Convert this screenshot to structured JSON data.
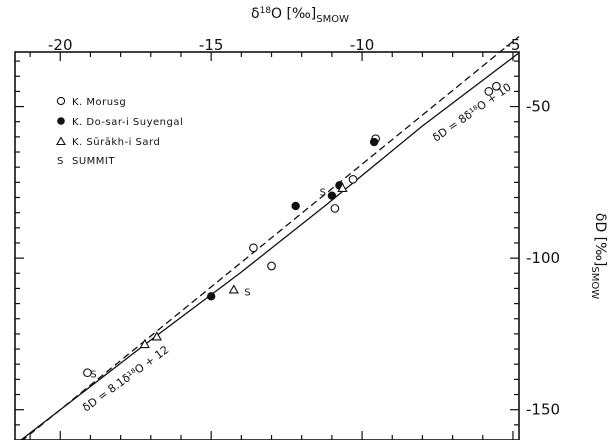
{
  "chart_data": {
    "type": "scatter",
    "xlabel": {
      "main": "δ",
      "sup": "18",
      "mid": "O [‰]",
      "sub": "SMOW"
    },
    "ylabel": {
      "main": "δD [‰]",
      "sub": "SMOW"
    },
    "xlim": [
      -21.5,
      -4.8
    ],
    "ylim": [
      -160,
      -32
    ],
    "x_ticks": [
      -20,
      -15,
      -10,
      -5
    ],
    "y_ticks": [
      -50,
      -100,
      -150
    ],
    "x_tick_labels": [
      "-20",
      "-15",
      "-10",
      "-5"
    ],
    "y_tick_labels": [
      "-50",
      "-100",
      "-150"
    ],
    "grid": false,
    "legend_placement": "top-left",
    "legend": [
      {
        "marker": "open-circle",
        "label": "K. Morusg"
      },
      {
        "marker": "filled-circle",
        "label": "K. Do-sar-i Suyengal"
      },
      {
        "marker": "open-triangle",
        "label": "K. Sūrākh-i Sard"
      },
      {
        "marker": "letter-S",
        "label": "SUMMIT"
      }
    ],
    "series": [
      {
        "name": "K. Morusg",
        "marker": "open-circle",
        "points": [
          [
            -19.1,
            -137.8
          ],
          [
            -13.6,
            -96.6
          ],
          [
            -13.0,
            -102.6
          ],
          [
            -10.9,
            -83.6
          ],
          [
            -10.3,
            -74.0
          ],
          [
            -9.55,
            -60.6
          ],
          [
            -5.8,
            -45.0
          ],
          [
            -5.55,
            -43.3
          ]
        ]
      },
      {
        "name": "K. Do-sar-i Suyengal",
        "marker": "filled-circle",
        "points": [
          [
            -15.0,
            -112.6
          ],
          [
            -12.2,
            -82.8
          ],
          [
            -11.0,
            -79.4
          ],
          [
            -10.75,
            -76.0
          ],
          [
            -9.6,
            -61.7
          ]
        ]
      },
      {
        "name": "K. Sūrākh-i Sard",
        "marker": "open-triangle",
        "points": [
          [
            -17.2,
            -128.5
          ],
          [
            -16.8,
            -126.0
          ],
          [
            -14.25,
            -110.5
          ],
          [
            -10.65,
            -77.0
          ]
        ]
      },
      {
        "name": "SUMMIT",
        "marker": "letter-S",
        "points": [
          [
            -18.9,
            -138.0
          ],
          [
            -13.8,
            -111.0
          ],
          [
            -11.3,
            -78.0
          ]
        ]
      }
    ],
    "lines": [
      {
        "style": "solid",
        "points": [
          [
            -21.3,
            -160
          ],
          [
            -17.0,
            -127.0
          ],
          [
            -14.0,
            -104.6
          ],
          [
            -11.2,
            -82.5
          ],
          [
            -8.0,
            -56.4
          ],
          [
            -4.8,
            -32.3
          ]
        ]
      },
      {
        "style": "dashed",
        "slope": 8.1,
        "intercept": 12,
        "x_range": [
          -21.3,
          -4.8
        ]
      }
    ],
    "annotations": [
      {
        "id": "eq-upper",
        "text": "δD = 8δ¹⁸O + 10"
      },
      {
        "id": "eq-lower",
        "text": "δD = 8.1δ¹⁸O + 12"
      }
    ]
  }
}
